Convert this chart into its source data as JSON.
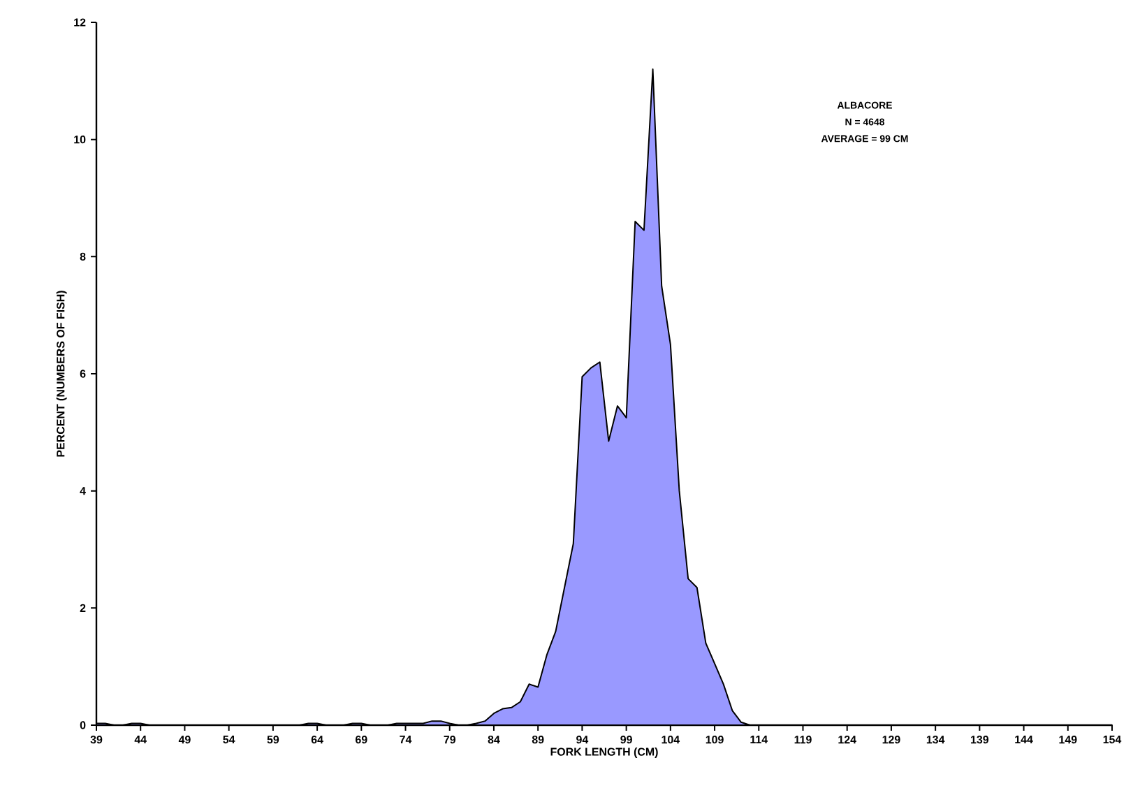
{
  "chart_data": {
    "type": "area",
    "xlabel": "FORK LENGTH (CM)",
    "ylabel": "PERCENT (NUMBERS OF FISH)",
    "annotations": [
      "ALBACORE",
      "N = 4648",
      "AVERAGE = 99 CM"
    ],
    "x": [
      39,
      40,
      41,
      42,
      43,
      44,
      45,
      46,
      47,
      48,
      49,
      50,
      51,
      52,
      53,
      54,
      55,
      56,
      57,
      58,
      59,
      60,
      61,
      62,
      63,
      64,
      65,
      66,
      67,
      68,
      69,
      70,
      71,
      72,
      73,
      74,
      75,
      76,
      77,
      78,
      79,
      80,
      81,
      82,
      83,
      84,
      85,
      86,
      87,
      88,
      89,
      90,
      91,
      92,
      93,
      94,
      95,
      96,
      97,
      98,
      99,
      100,
      101,
      102,
      103,
      104,
      105,
      106,
      107,
      108,
      109,
      110,
      111,
      112,
      113,
      114,
      115,
      116,
      117,
      118,
      119,
      120,
      121,
      122,
      123,
      124,
      125,
      126,
      127,
      128,
      129,
      130,
      131,
      132,
      133,
      134,
      135,
      136,
      137,
      138,
      139,
      140,
      141,
      142,
      143,
      144,
      145,
      146,
      147,
      148,
      149,
      150,
      151,
      152,
      153,
      154
    ],
    "series": [
      {
        "color": "#9999ff",
        "values": [
          0.03,
          0.03,
          0,
          0,
          0.03,
          0.03,
          0,
          0,
          0,
          0,
          0,
          0,
          0,
          0,
          0,
          0,
          0,
          0,
          0,
          0,
          0,
          0,
          0,
          0,
          0.03,
          0.03,
          0,
          0,
          0,
          0.03,
          0.03,
          0,
          0,
          0,
          0.03,
          0.03,
          0.03,
          0.03,
          0.07,
          0.07,
          0.03,
          0,
          0,
          0.03,
          0.07,
          0.2,
          0.28,
          0.3,
          0.4,
          0.7,
          0.65,
          1.2,
          1.6,
          2.35,
          3.1,
          5.95,
          6.1,
          6.2,
          4.85,
          5.45,
          5.25,
          8.6,
          8.45,
          11.2,
          7.5,
          6.5,
          4.0,
          2.5,
          2.35,
          1.4,
          1.05,
          0.7,
          0.25,
          0.05,
          0,
          0,
          0,
          0,
          0,
          0,
          0,
          0,
          0,
          0,
          0,
          0,
          0,
          0,
          0,
          0,
          0,
          0,
          0,
          0,
          0,
          0,
          0,
          0,
          0,
          0,
          0,
          0,
          0,
          0,
          0,
          0,
          0,
          0,
          0,
          0,
          0,
          0,
          0,
          0,
          0,
          0
        ]
      }
    ],
    "xlim": [
      39,
      154
    ],
    "xticks": [
      39,
      44,
      49,
      54,
      59,
      64,
      69,
      74,
      79,
      84,
      89,
      94,
      99,
      104,
      109,
      114,
      119,
      124,
      129,
      134,
      139,
      144,
      149,
      154
    ],
    "ylim": [
      0,
      12
    ],
    "yticks": [
      0,
      2,
      4,
      6,
      8,
      10,
      12
    ],
    "grid": false
  }
}
